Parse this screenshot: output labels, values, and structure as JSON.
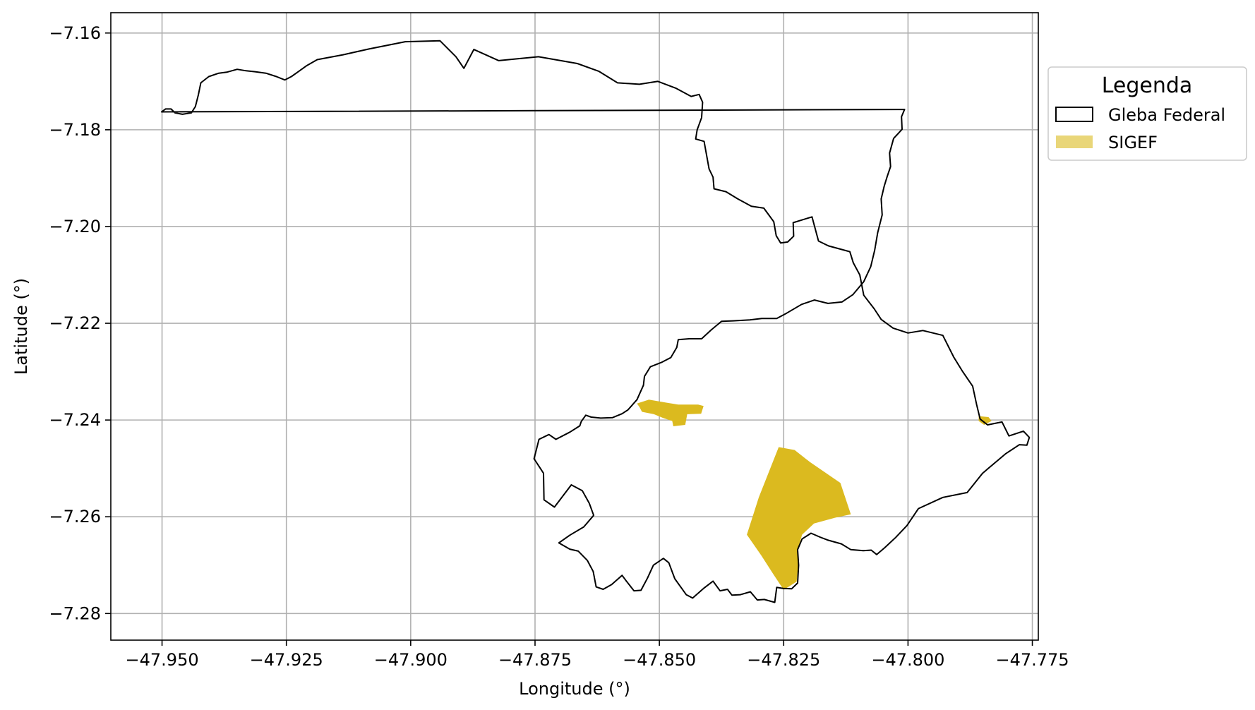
{
  "chart_data": {
    "type": "map",
    "xlabel": "Longitude (°)",
    "ylabel": "Latitude (°)",
    "xlim": [
      -47.9603,
      -47.7738
    ],
    "ylim": [
      -7.2855,
      -7.1558
    ],
    "xticks": [
      -47.95,
      -47.925,
      -47.9,
      -47.875,
      -47.85,
      -47.825,
      -47.8,
      -47.775
    ],
    "yticks": [
      -7.16,
      -7.18,
      -7.2,
      -7.22,
      -7.24,
      -7.26,
      -7.28
    ],
    "xtick_labels": [
      "−47.950",
      "−47.925",
      "−47.900",
      "−47.875",
      "−47.850",
      "−47.825",
      "−47.800",
      "−47.775"
    ],
    "ytick_labels": [
      "−7.16",
      "−7.18",
      "−7.20",
      "−7.22",
      "−7.24",
      "−7.26",
      "−7.28"
    ],
    "grid": true,
    "legend": {
      "title": "Legenda",
      "placement": "outside-right-top",
      "entries": [
        {
          "label": "Gleba Federal",
          "style": "outline",
          "color": "#000000"
        },
        {
          "label": "SIGEF",
          "style": "fill",
          "color": "#DBBA1F"
        }
      ]
    },
    "layers": [
      {
        "name": "Gleba Federal",
        "type": "polygon-outline",
        "color": "#000000",
        "coordinates": [
          [
            -47.9501,
            -7.1763
          ],
          [
            -47.9493,
            -7.1757
          ],
          [
            -47.9482,
            -7.1757
          ],
          [
            -47.9474,
            -7.1765
          ],
          [
            -47.9459,
            -7.1768
          ],
          [
            -47.9441,
            -7.1765
          ],
          [
            -47.9433,
            -7.1752
          ],
          [
            -47.9427,
            -7.1728
          ],
          [
            -47.9422,
            -7.1703
          ],
          [
            -47.9406,
            -7.169
          ],
          [
            -47.9386,
            -7.1683
          ],
          [
            -47.937,
            -7.1681
          ],
          [
            -47.9349,
            -7.1675
          ],
          [
            -47.9331,
            -7.1678
          ],
          [
            -47.9313,
            -7.168
          ],
          [
            -47.9291,
            -7.1683
          ],
          [
            -47.927,
            -7.169
          ],
          [
            -47.9253,
            -7.1697
          ],
          [
            -47.924,
            -7.169
          ],
          [
            -47.9226,
            -7.168
          ],
          [
            -47.921,
            -7.1668
          ],
          [
            -47.9188,
            -7.1655
          ],
          [
            -47.9136,
            -7.1645
          ],
          [
            -47.9084,
            -7.1633
          ],
          [
            -47.9011,
            -7.1618
          ],
          [
            -47.8941,
            -7.1616
          ],
          [
            -47.8909,
            -7.1649
          ],
          [
            -47.8893,
            -7.1673
          ],
          [
            -47.8873,
            -7.1634
          ],
          [
            -47.8823,
            -7.1657
          ],
          [
            -47.8743,
            -7.1649
          ],
          [
            -47.8665,
            -7.1663
          ],
          [
            -47.8622,
            -7.1679
          ],
          [
            -47.8584,
            -7.1703
          ],
          [
            -47.854,
            -7.1706
          ],
          [
            -47.8503,
            -7.17
          ],
          [
            -47.8467,
            -7.1714
          ],
          [
            -47.8436,
            -7.1731
          ],
          [
            -47.842,
            -7.1727
          ],
          [
            -47.8413,
            -7.1743
          ],
          [
            -47.8415,
            -7.1775
          ],
          [
            -47.8424,
            -7.18
          ],
          [
            -47.8427,
            -7.1819
          ],
          [
            -47.841,
            -7.1824
          ],
          [
            -47.84,
            -7.1881
          ],
          [
            -47.8392,
            -7.1898
          ],
          [
            -47.839,
            -7.1922
          ],
          [
            -47.8366,
            -7.1928
          ],
          [
            -47.8342,
            -7.1943
          ],
          [
            -47.8315,
            -7.1958
          ],
          [
            -47.829,
            -7.1962
          ],
          [
            -47.827,
            -7.199
          ],
          [
            -47.8265,
            -7.2019
          ],
          [
            -47.8256,
            -7.2034
          ],
          [
            -47.8242,
            -7.2032
          ],
          [
            -47.823,
            -7.202
          ],
          [
            -47.8231,
            -7.1992
          ],
          [
            -47.8193,
            -7.198
          ],
          [
            -47.818,
            -7.203
          ],
          [
            -47.816,
            -7.204
          ],
          [
            -47.8117,
            -7.2052
          ],
          [
            -47.811,
            -7.2075
          ],
          [
            -47.8097,
            -7.21
          ],
          [
            -47.8089,
            -7.2142
          ],
          [
            -47.8068,
            -7.217
          ],
          [
            -47.8054,
            -7.2192
          ],
          [
            -47.803,
            -7.221
          ],
          [
            -47.8,
            -7.222
          ],
          [
            -47.797,
            -7.2215
          ],
          [
            -47.793,
            -7.2225
          ],
          [
            -47.7908,
            -7.227
          ],
          [
            -47.789,
            -7.23
          ],
          [
            -47.787,
            -7.233
          ],
          [
            -47.7862,
            -7.2368
          ],
          [
            -47.7855,
            -7.2398
          ],
          [
            -47.784,
            -7.241
          ],
          [
            -47.7811,
            -7.2404
          ],
          [
            -47.7797,
            -7.2433
          ],
          [
            -47.7768,
            -7.2423
          ],
          [
            -47.7756,
            -7.2436
          ],
          [
            -47.7761,
            -7.2452
          ],
          [
            -47.7776,
            -7.2451
          ],
          [
            -47.7804,
            -7.247
          ],
          [
            -47.785,
            -7.251
          ],
          [
            -47.7881,
            -7.255
          ],
          [
            -47.793,
            -7.256
          ],
          [
            -47.7979,
            -7.2583
          ],
          [
            -47.8002,
            -7.2618
          ],
          [
            -47.8025,
            -7.2643
          ],
          [
            -47.8047,
            -7.2664
          ],
          [
            -47.8063,
            -7.2678
          ],
          [
            -47.8074,
            -7.2669
          ],
          [
            -47.809,
            -7.267
          ],
          [
            -47.8115,
            -7.2668
          ],
          [
            -47.8134,
            -7.2656
          ],
          [
            -47.8162,
            -7.2648
          ],
          [
            -47.8177,
            -7.2642
          ],
          [
            -47.8195,
            -7.2634
          ],
          [
            -47.8213,
            -7.2646
          ],
          [
            -47.8222,
            -7.2668
          ],
          [
            -47.822,
            -7.27
          ],
          [
            -47.8222,
            -7.2737
          ],
          [
            -47.8234,
            -7.2749
          ],
          [
            -47.8251,
            -7.2748
          ],
          [
            -47.8264,
            -7.2746
          ],
          [
            -47.8268,
            -7.2777
          ],
          [
            -47.8289,
            -7.2771
          ],
          [
            -47.8303,
            -7.2772
          ],
          [
            -47.8317,
            -7.2755
          ],
          [
            -47.8337,
            -7.2761
          ],
          [
            -47.8354,
            -7.2762
          ],
          [
            -47.8363,
            -7.275
          ],
          [
            -47.8378,
            -7.2753
          ],
          [
            -47.8392,
            -7.2733
          ],
          [
            -47.8411,
            -7.2748
          ],
          [
            -47.8433,
            -7.2768
          ],
          [
            -47.8446,
            -7.2761
          ],
          [
            -47.8469,
            -7.2728
          ],
          [
            -47.8481,
            -7.2695
          ],
          [
            -47.8492,
            -7.2686
          ],
          [
            -47.8512,
            -7.27
          ],
          [
            -47.8524,
            -7.2727
          ],
          [
            -47.8537,
            -7.2752
          ],
          [
            -47.8551,
            -7.2753
          ],
          [
            -47.8567,
            -7.2732
          ],
          [
            -47.8575,
            -7.2721
          ],
          [
            -47.8596,
            -7.274
          ],
          [
            -47.8613,
            -7.275
          ],
          [
            -47.8627,
            -7.2745
          ],
          [
            -47.8633,
            -7.2713
          ],
          [
            -47.8645,
            -7.269
          ],
          [
            -47.8663,
            -7.2671
          ],
          [
            -47.868,
            -7.2667
          ],
          [
            -47.8702,
            -7.2654
          ],
          [
            -47.868,
            -7.2638
          ],
          [
            -47.8652,
            -7.2621
          ],
          [
            -47.8632,
            -7.2597
          ],
          [
            -47.8641,
            -7.2572
          ],
          [
            -47.8655,
            -7.2546
          ],
          [
            -47.8677,
            -7.2534
          ],
          [
            -47.8711,
            -7.258
          ],
          [
            -47.8732,
            -7.2565
          ],
          [
            -47.8733,
            -7.251
          ],
          [
            -47.8752,
            -7.248
          ],
          [
            -47.8742,
            -7.244
          ],
          [
            -47.8722,
            -7.243
          ],
          [
            -47.8708,
            -7.244
          ],
          [
            -47.868,
            -7.2425
          ],
          [
            -47.866,
            -7.2412
          ],
          [
            -47.8657,
            -7.2403
          ],
          [
            -47.8648,
            -7.239
          ],
          [
            -47.8637,
            -7.2394
          ],
          [
            -47.8618,
            -7.2396
          ],
          [
            -47.8594,
            -7.2395
          ],
          [
            -47.8575,
            -7.2387
          ],
          [
            -47.8563,
            -7.2379
          ],
          [
            -47.8545,
            -7.2358
          ],
          [
            -47.8532,
            -7.2328
          ],
          [
            -47.853,
            -7.231
          ],
          [
            -47.8518,
            -7.229
          ],
          [
            -47.8496,
            -7.2281
          ],
          [
            -47.8477,
            -7.2271
          ],
          [
            -47.8465,
            -7.225
          ],
          [
            -47.8462,
            -7.2234
          ],
          [
            -47.844,
            -7.2232
          ],
          [
            -47.8415,
            -7.2232
          ],
          [
            -47.8396,
            -7.2214
          ],
          [
            -47.8375,
            -7.2196
          ],
          [
            -47.8352,
            -7.2195
          ],
          [
            -47.8318,
            -7.2193
          ],
          [
            -47.8294,
            -7.219
          ],
          [
            -47.8264,
            -7.219
          ],
          [
            -47.8244,
            -7.2179
          ],
          [
            -47.8214,
            -7.2161
          ],
          [
            -47.8188,
            -7.2152
          ],
          [
            -47.8161,
            -7.2159
          ],
          [
            -47.8133,
            -7.2156
          ],
          [
            -47.8111,
            -7.2141
          ],
          [
            -47.8089,
            -7.2114
          ],
          [
            -47.8075,
            -7.2083
          ],
          [
            -47.8067,
            -7.2049
          ],
          [
            -47.8061,
            -7.2013
          ],
          [
            -47.8052,
            -7.1976
          ],
          [
            -47.8054,
            -7.1943
          ],
          [
            -47.8048,
            -7.1917
          ],
          [
            -47.8042,
            -7.1897
          ],
          [
            -47.8035,
            -7.1876
          ],
          [
            -47.8037,
            -7.1848
          ],
          [
            -47.8029,
            -7.1818
          ],
          [
            -47.8012,
            -7.1799
          ],
          [
            -47.8013,
            -7.1773
          ],
          [
            -47.8007,
            -7.1758
          ]
        ]
      },
      {
        "name": "SIGEF",
        "type": "polygon-fill",
        "color": "#DBBA1F",
        "polygons": [
          [
            [
              -47.826,
              -7.2456
            ],
            [
              -47.8228,
              -7.2462
            ],
            [
              -47.8197,
              -7.2487
            ],
            [
              -47.8136,
              -7.253
            ],
            [
              -47.8115,
              -7.2595
            ],
            [
              -47.8147,
              -7.2602
            ],
            [
              -47.8189,
              -7.2614
            ],
            [
              -47.8213,
              -7.2637
            ],
            [
              -47.8222,
              -7.2669
            ],
            [
              -47.8221,
              -7.2702
            ],
            [
              -47.8224,
              -7.2734
            ],
            [
              -47.825,
              -7.2751
            ],
            [
              -47.827,
              -7.272
            ],
            [
              -47.8295,
              -7.268
            ],
            [
              -47.8324,
              -7.2637
            ],
            [
              -47.83,
              -7.256
            ]
          ],
          [
            [
              -47.8545,
              -7.2366
            ],
            [
              -47.8521,
              -7.2358
            ],
            [
              -47.8486,
              -7.2364
            ],
            [
              -47.8462,
              -7.2368
            ],
            [
              -47.8422,
              -7.2368
            ],
            [
              -47.8411,
              -7.2371
            ],
            [
              -47.8416,
              -7.2387
            ],
            [
              -47.8444,
              -7.2388
            ],
            [
              -47.8448,
              -7.241
            ],
            [
              -47.8472,
              -7.2413
            ],
            [
              -47.8474,
              -7.2402
            ],
            [
              -47.8492,
              -7.2396
            ],
            [
              -47.8511,
              -7.2388
            ],
            [
              -47.8535,
              -7.2383
            ],
            [
              -47.854,
              -7.2373
            ]
          ],
          [
            [
              -47.7858,
              -7.2392
            ],
            [
              -47.7838,
              -7.2394
            ],
            [
              -47.7832,
              -7.2402
            ],
            [
              -47.7847,
              -7.241
            ],
            [
              -47.7858,
              -7.2402
            ]
          ]
        ]
      }
    ]
  }
}
